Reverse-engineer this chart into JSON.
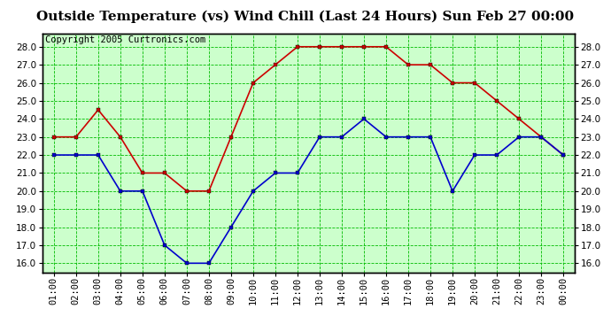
{
  "title": "Outside Temperature (vs) Wind Chill (Last 24 Hours) Sun Feb 27 00:00",
  "copyright": "Copyright 2005 Curtronics.com",
  "x_labels": [
    "01:00",
    "02:00",
    "03:00",
    "04:00",
    "05:00",
    "06:00",
    "07:00",
    "08:00",
    "09:00",
    "10:00",
    "11:00",
    "12:00",
    "13:00",
    "14:00",
    "15:00",
    "16:00",
    "17:00",
    "18:00",
    "19:00",
    "20:00",
    "21:00",
    "22:00",
    "23:00",
    "00:00"
  ],
  "red_data": [
    23.0,
    23.0,
    24.5,
    23.0,
    21.0,
    21.0,
    20.0,
    20.0,
    23.0,
    26.0,
    27.0,
    28.0,
    28.0,
    28.0,
    28.0,
    28.0,
    27.0,
    27.0,
    26.0,
    26.0,
    25.0,
    24.0,
    23.0,
    22.0
  ],
  "blue_data": [
    22.0,
    22.0,
    22.0,
    20.0,
    20.0,
    17.0,
    16.0,
    16.0,
    18.0,
    20.0,
    21.0,
    21.0,
    23.0,
    23.0,
    24.0,
    23.0,
    23.0,
    23.0,
    20.0,
    22.0,
    22.0,
    23.0,
    23.0,
    22.0
  ],
  "red_color": "#cc0000",
  "blue_color": "#0000cc",
  "background_color": "#ccffcc",
  "grid_color": "#00bb00",
  "fig_background": "#ffffff",
  "ylim": [
    15.5,
    28.75
  ],
  "yticks": [
    16.0,
    17.0,
    18.0,
    19.0,
    20.0,
    21.0,
    22.0,
    23.0,
    24.0,
    25.0,
    26.0,
    27.0,
    28.0
  ],
  "title_fontsize": 11,
  "copyright_fontsize": 7.5,
  "tick_fontsize": 7.5,
  "marker": "s",
  "marker_size": 2.5,
  "line_width": 1.2
}
